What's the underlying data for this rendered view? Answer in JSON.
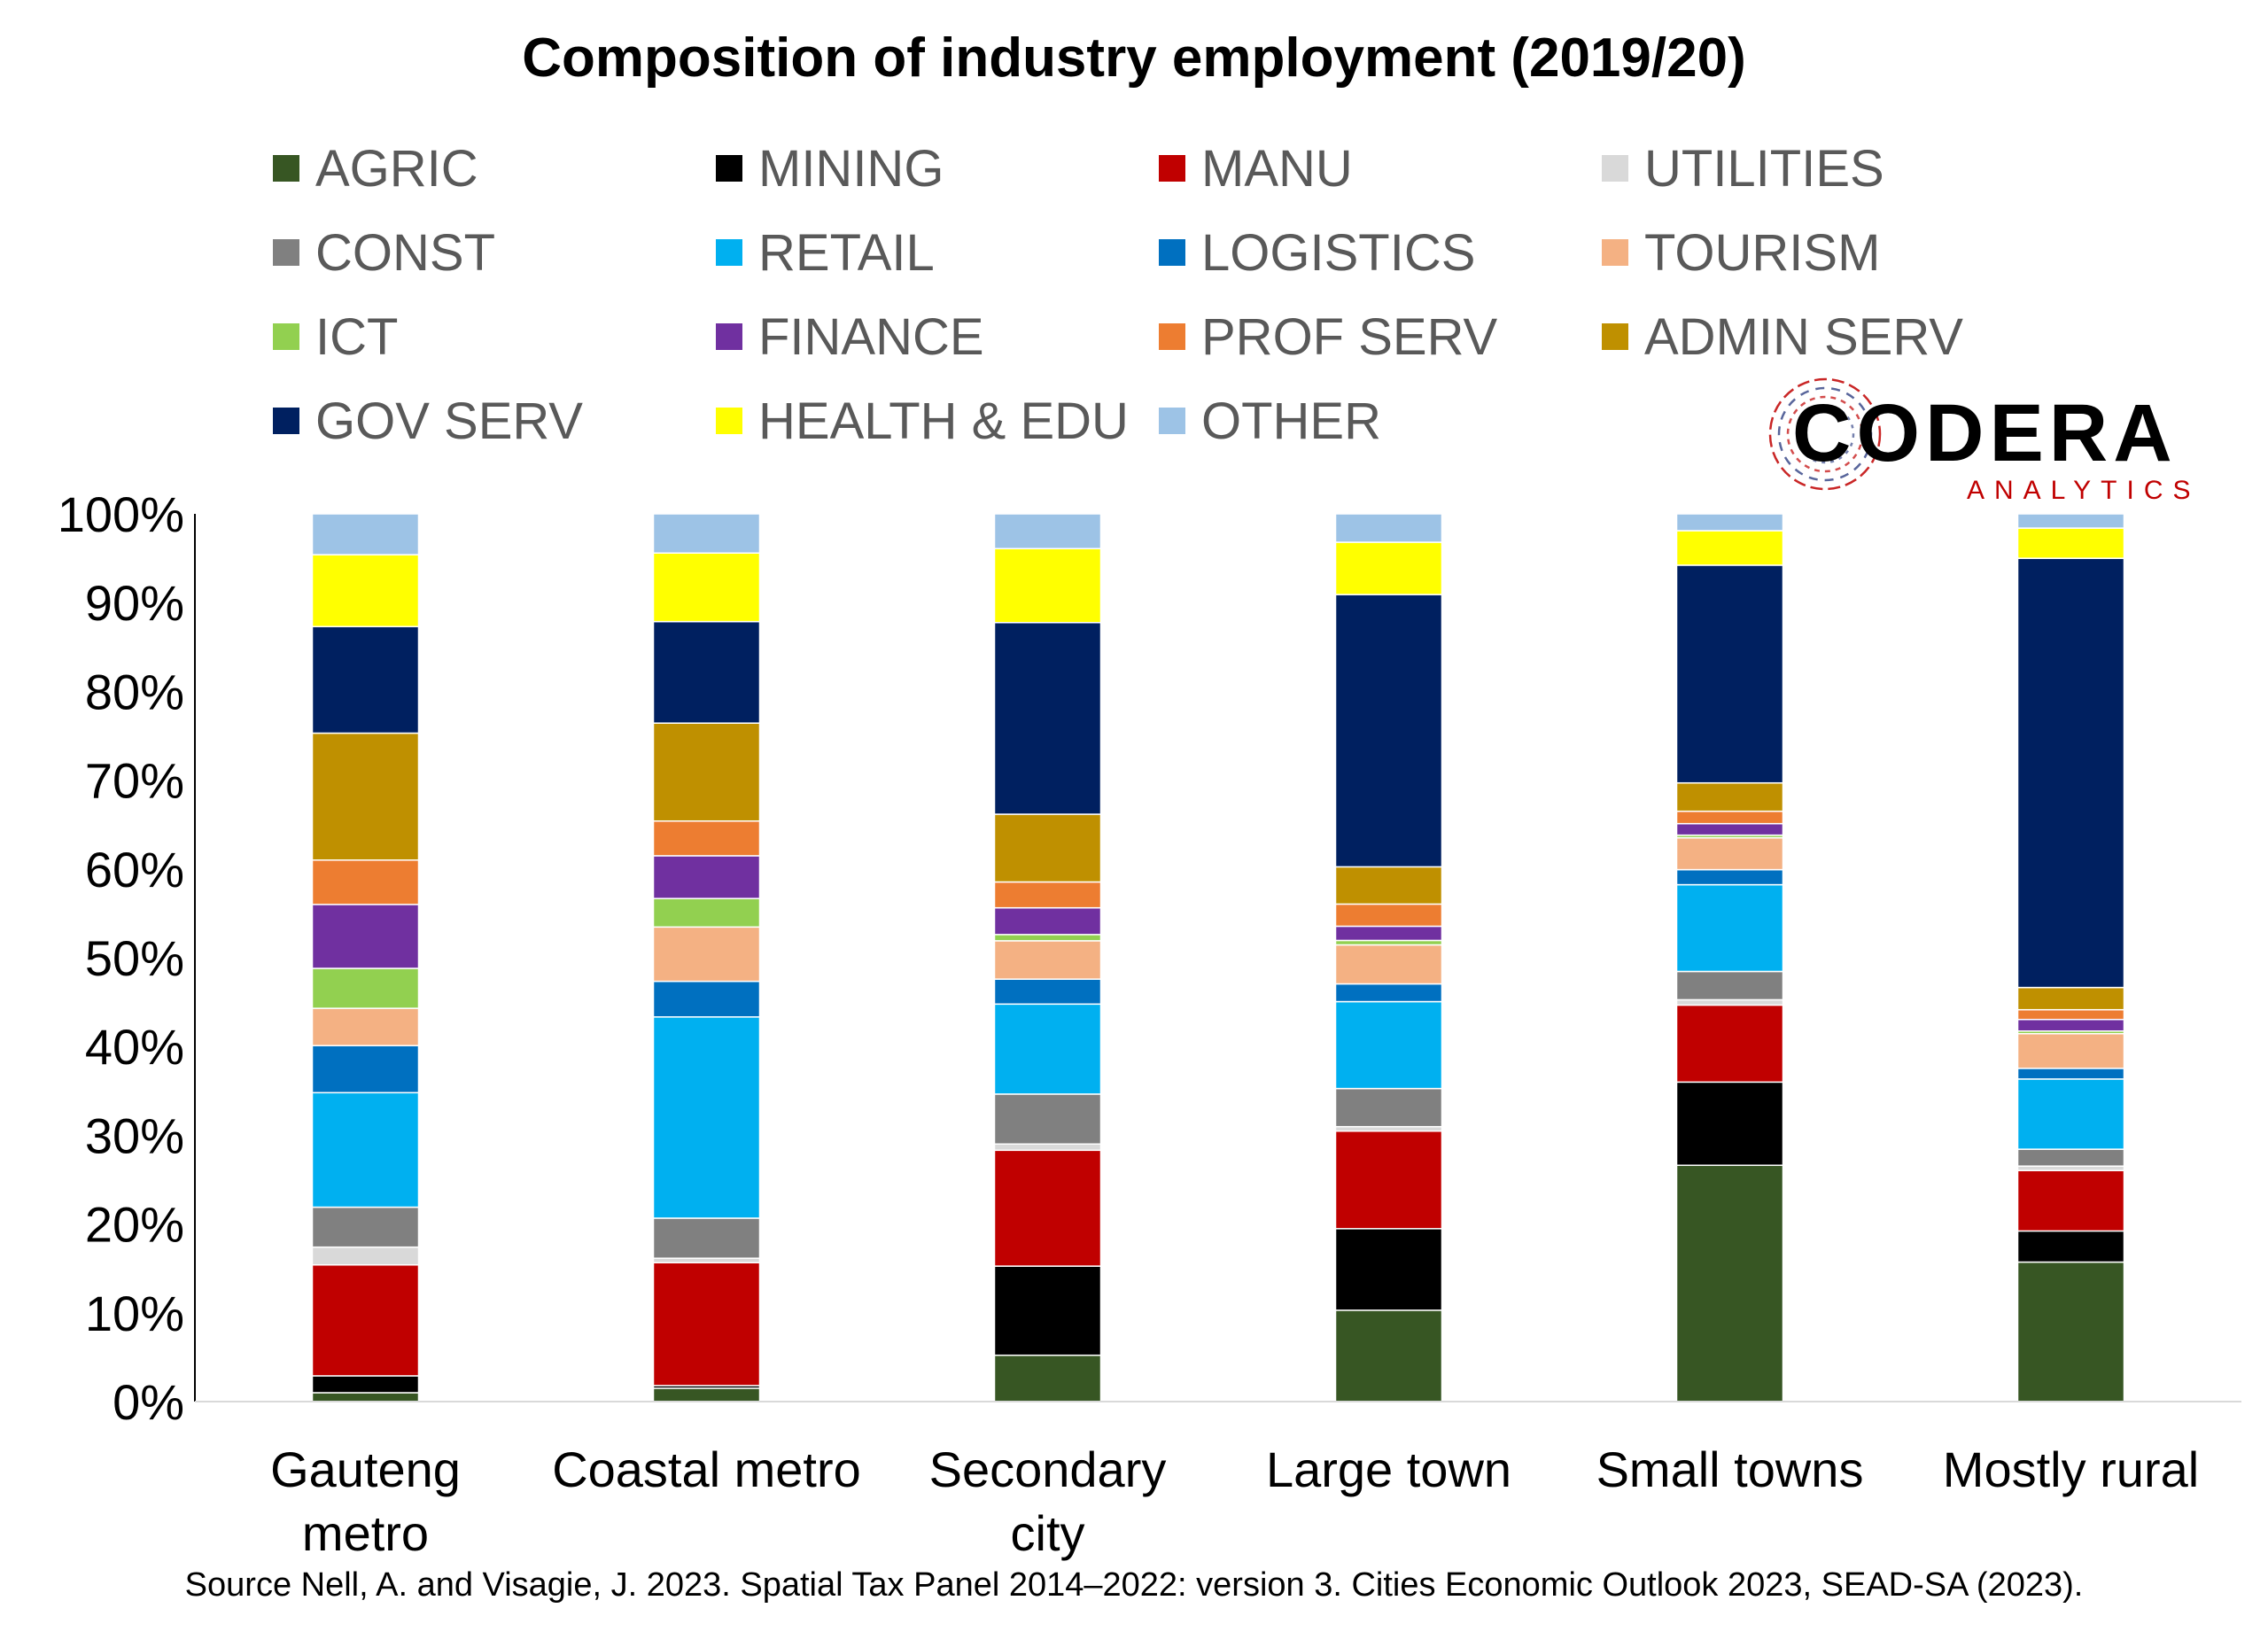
{
  "chart_data": {
    "type": "bar",
    "stacked": true,
    "title": "Composition of industry employment (2019/20)",
    "categories": [
      [
        "Gauteng",
        "metro"
      ],
      [
        "Coastal metro"
      ],
      [
        "Secondary",
        "city"
      ],
      [
        "Large town"
      ],
      [
        "Small towns"
      ],
      [
        "Mostly rural"
      ]
    ],
    "ylim": [
      0,
      100
    ],
    "y_ticks": [
      "0%",
      "10%",
      "20%",
      "30%",
      "40%",
      "50%",
      "60%",
      "70%",
      "80%",
      "90%",
      "100%"
    ],
    "grid": false,
    "legend_position": "top",
    "series": [
      {
        "name": "AGRIC",
        "color": "#375623",
        "values": [
          1,
          1.5,
          5.2,
          10.3,
          26.7,
          15.7
        ]
      },
      {
        "name": "MINING",
        "color": "#000000",
        "values": [
          1.9,
          0.3,
          10,
          9.2,
          9.4,
          3.5
        ]
      },
      {
        "name": "MANU",
        "color": "#c00000",
        "values": [
          12.5,
          13.8,
          13,
          11,
          8.7,
          6.8
        ]
      },
      {
        "name": "UTILITIES",
        "color": "#d9d9d9",
        "values": [
          2,
          0.5,
          0.7,
          0.5,
          0.6,
          0.5
        ]
      },
      {
        "name": "CONST",
        "color": "#808080",
        "values": [
          4.5,
          4.5,
          5.6,
          4.3,
          3.2,
          1.9
        ]
      },
      {
        "name": "RETAIL",
        "color": "#00b0f0",
        "values": [
          12.9,
          22.6,
          10.1,
          9.8,
          9.8,
          7.9
        ]
      },
      {
        "name": "LOGISTICS",
        "color": "#0070c0",
        "values": [
          5.3,
          4,
          2.8,
          2,
          1.7,
          1.2
        ]
      },
      {
        "name": "TOURISM",
        "color": "#f4b183",
        "values": [
          4.2,
          6.1,
          4.3,
          4.4,
          3.6,
          3.9
        ]
      },
      {
        "name": "ICT",
        "color": "#92d050",
        "values": [
          4.5,
          3.2,
          0.7,
          0.5,
          0.3,
          0.3
        ]
      },
      {
        "name": "FINANCE",
        "color": "#7030a0",
        "values": [
          7.2,
          4.8,
          3,
          1.6,
          1.3,
          1.3
        ]
      },
      {
        "name": "PROF SERV",
        "color": "#ed7d31",
        "values": [
          5,
          3.9,
          2.9,
          2.5,
          1.4,
          1.1
        ]
      },
      {
        "name": "ADMIN SERV",
        "color": "#bf9000",
        "values": [
          14.3,
          11,
          7.6,
          4.2,
          3.2,
          2.5
        ]
      },
      {
        "name": "GOV SERV",
        "color": "#002060",
        "values": [
          12,
          11.4,
          21.5,
          30.7,
          24.6,
          48.3
        ]
      },
      {
        "name": "HEALTH & EDU",
        "color": "#ffff00",
        "values": [
          8.1,
          7.7,
          8.3,
          5.9,
          3.9,
          3.4
        ]
      },
      {
        "name": "OTHER",
        "color": "#9dc3e6",
        "values": [
          4.6,
          4.4,
          3.9,
          3.2,
          1.9,
          1.6
        ]
      }
    ]
  },
  "logo": {
    "name": "CODERA",
    "sub": "ANALYTICS",
    "name_color": "#000000",
    "sub_color": "#c00000"
  },
  "source": "Source Nell, A. and Visagie, J. 2023. Spatial Tax Panel 2014–2022: version 3. Cities Economic Outlook 2023, SEAD-SA (2023)."
}
